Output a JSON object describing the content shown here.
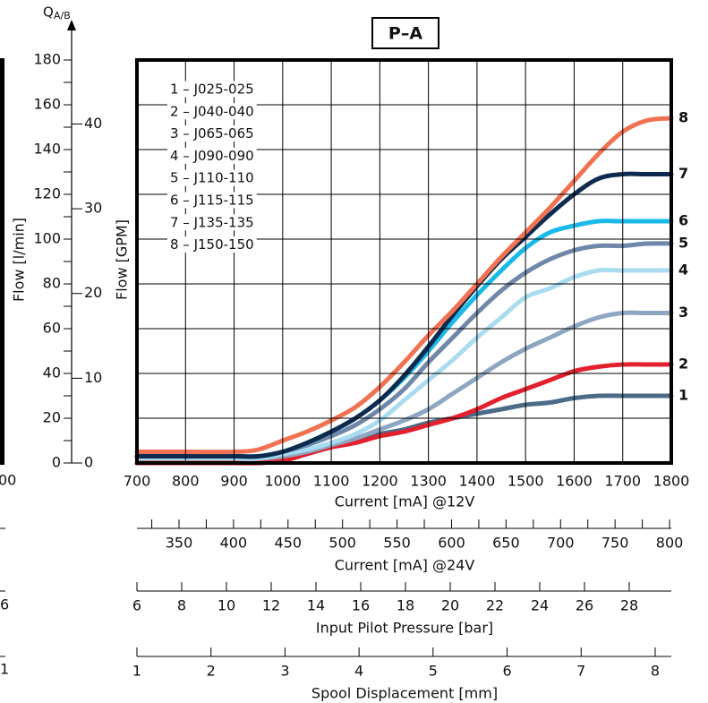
{
  "chart_data": {
    "type": "line",
    "title": "P–A",
    "y_axis_symbol": "Q",
    "y_axis_subscript": "A/B",
    "ylabel": "Flow [l/min]",
    "y2label": "Flow [GPM]",
    "xlabel": "Current [mA] @12V",
    "x": [
      700,
      800,
      900,
      950,
      1000,
      1050,
      1100,
      1150,
      1200,
      1250,
      1300,
      1350,
      1400,
      1450,
      1500,
      1550,
      1600,
      1650,
      1700,
      1750,
      1800
    ],
    "xlim": [
      700,
      1800
    ],
    "xticks": [
      700,
      800,
      900,
      1000,
      1100,
      1200,
      1300,
      1400,
      1500,
      1600,
      1700,
      1800
    ],
    "ylim": [
      0,
      180
    ],
    "yticks": [
      0,
      20,
      40,
      60,
      80,
      100,
      120,
      140,
      160,
      180
    ],
    "yminor": [
      10,
      30,
      50,
      70,
      90,
      110,
      130,
      150,
      170
    ],
    "y2lim": [
      0,
      47.55
    ],
    "y2ticks": [
      0,
      10,
      20,
      30,
      40
    ],
    "grid": true,
    "series": [
      {
        "name": "1 – J025-025",
        "end_label": "1",
        "color": "#4b6b87",
        "values": [
          2,
          2,
          2,
          2,
          4,
          6,
          8,
          11,
          13,
          15,
          18,
          20,
          22,
          24,
          26,
          27,
          29,
          30,
          30,
          30,
          30
        ]
      },
      {
        "name": "2 – J040-040",
        "end_label": "2",
        "color": "#e3202e",
        "values": [
          0,
          0,
          0,
          0,
          1,
          4,
          7,
          9,
          12,
          14,
          17,
          20,
          24,
          29,
          33,
          37,
          41,
          43,
          44,
          44,
          44
        ]
      },
      {
        "name": "3 – J065-065",
        "end_label": "3",
        "color": "#8ea6c1",
        "values": [
          2,
          2,
          2,
          2,
          3,
          5,
          8,
          11,
          15,
          19,
          24,
          31,
          38,
          45,
          51,
          56,
          61,
          65,
          67,
          67,
          67
        ]
      },
      {
        "name": "4 – J090-090",
        "end_label": "4",
        "color": "#a9dcf0",
        "values": [
          2,
          2,
          2,
          2,
          4,
          6,
          9,
          13,
          19,
          28,
          37,
          46,
          56,
          65,
          74,
          78,
          83,
          86,
          86,
          86,
          86
        ]
      },
      {
        "name": "5 – J110-110",
        "end_label": "5",
        "color": "#6f87a9",
        "values": [
          3,
          3,
          3,
          3,
          5,
          8,
          12,
          17,
          24,
          33,
          45,
          56,
          67,
          77,
          85,
          91,
          95,
          97,
          97,
          98,
          98
        ]
      },
      {
        "name": "6 – J115-115",
        "end_label": "6",
        "color": "#1bb9ea",
        "values": [
          3,
          3,
          3,
          3,
          5,
          9,
          14,
          20,
          28,
          38,
          50,
          63,
          75,
          86,
          96,
          103,
          106,
          108,
          108,
          108,
          108
        ]
      },
      {
        "name": "7 – J135-135",
        "end_label": "7",
        "color": "#0e2b4f",
        "values": [
          3,
          3,
          3,
          3,
          5,
          9,
          14,
          20,
          28,
          39,
          52,
          66,
          79,
          91,
          101,
          111,
          120,
          127,
          129,
          129,
          129
        ]
      },
      {
        "name": "8 – J150-150",
        "end_label": "8",
        "color": "#f07252",
        "values": [
          5,
          5,
          5,
          6,
          10,
          14,
          19,
          25,
          34,
          45,
          57,
          68,
          80,
          92,
          103,
          114,
          126,
          138,
          148,
          153,
          154
        ]
      }
    ],
    "secondary_x_axes": [
      {
        "label": "Current [mA] @24V",
        "xlim": [
          311.4,
          801.6
        ],
        "ticks": [
          350,
          400,
          450,
          500,
          550,
          600,
          650,
          700,
          750,
          800
        ],
        "minor_ticks": [
          325,
          375,
          425,
          475,
          525,
          575,
          625,
          675,
          725,
          775
        ]
      },
      {
        "label": "Input Pilot Pressure [bar]",
        "xlim": [
          6,
          29.88
        ],
        "ticks": [
          6,
          8,
          10,
          12,
          14,
          16,
          18,
          20,
          22,
          24,
          26,
          28
        ],
        "minor_ticks": []
      },
      {
        "label": "Spool Displacement [mm]",
        "xlim": [
          1,
          8.218
        ],
        "ticks": [
          1,
          2,
          3,
          4,
          5,
          6,
          7,
          8
        ],
        "minor_ticks": []
      }
    ],
    "left_fragment_labels": [
      "00",
      "6",
      "1"
    ]
  }
}
